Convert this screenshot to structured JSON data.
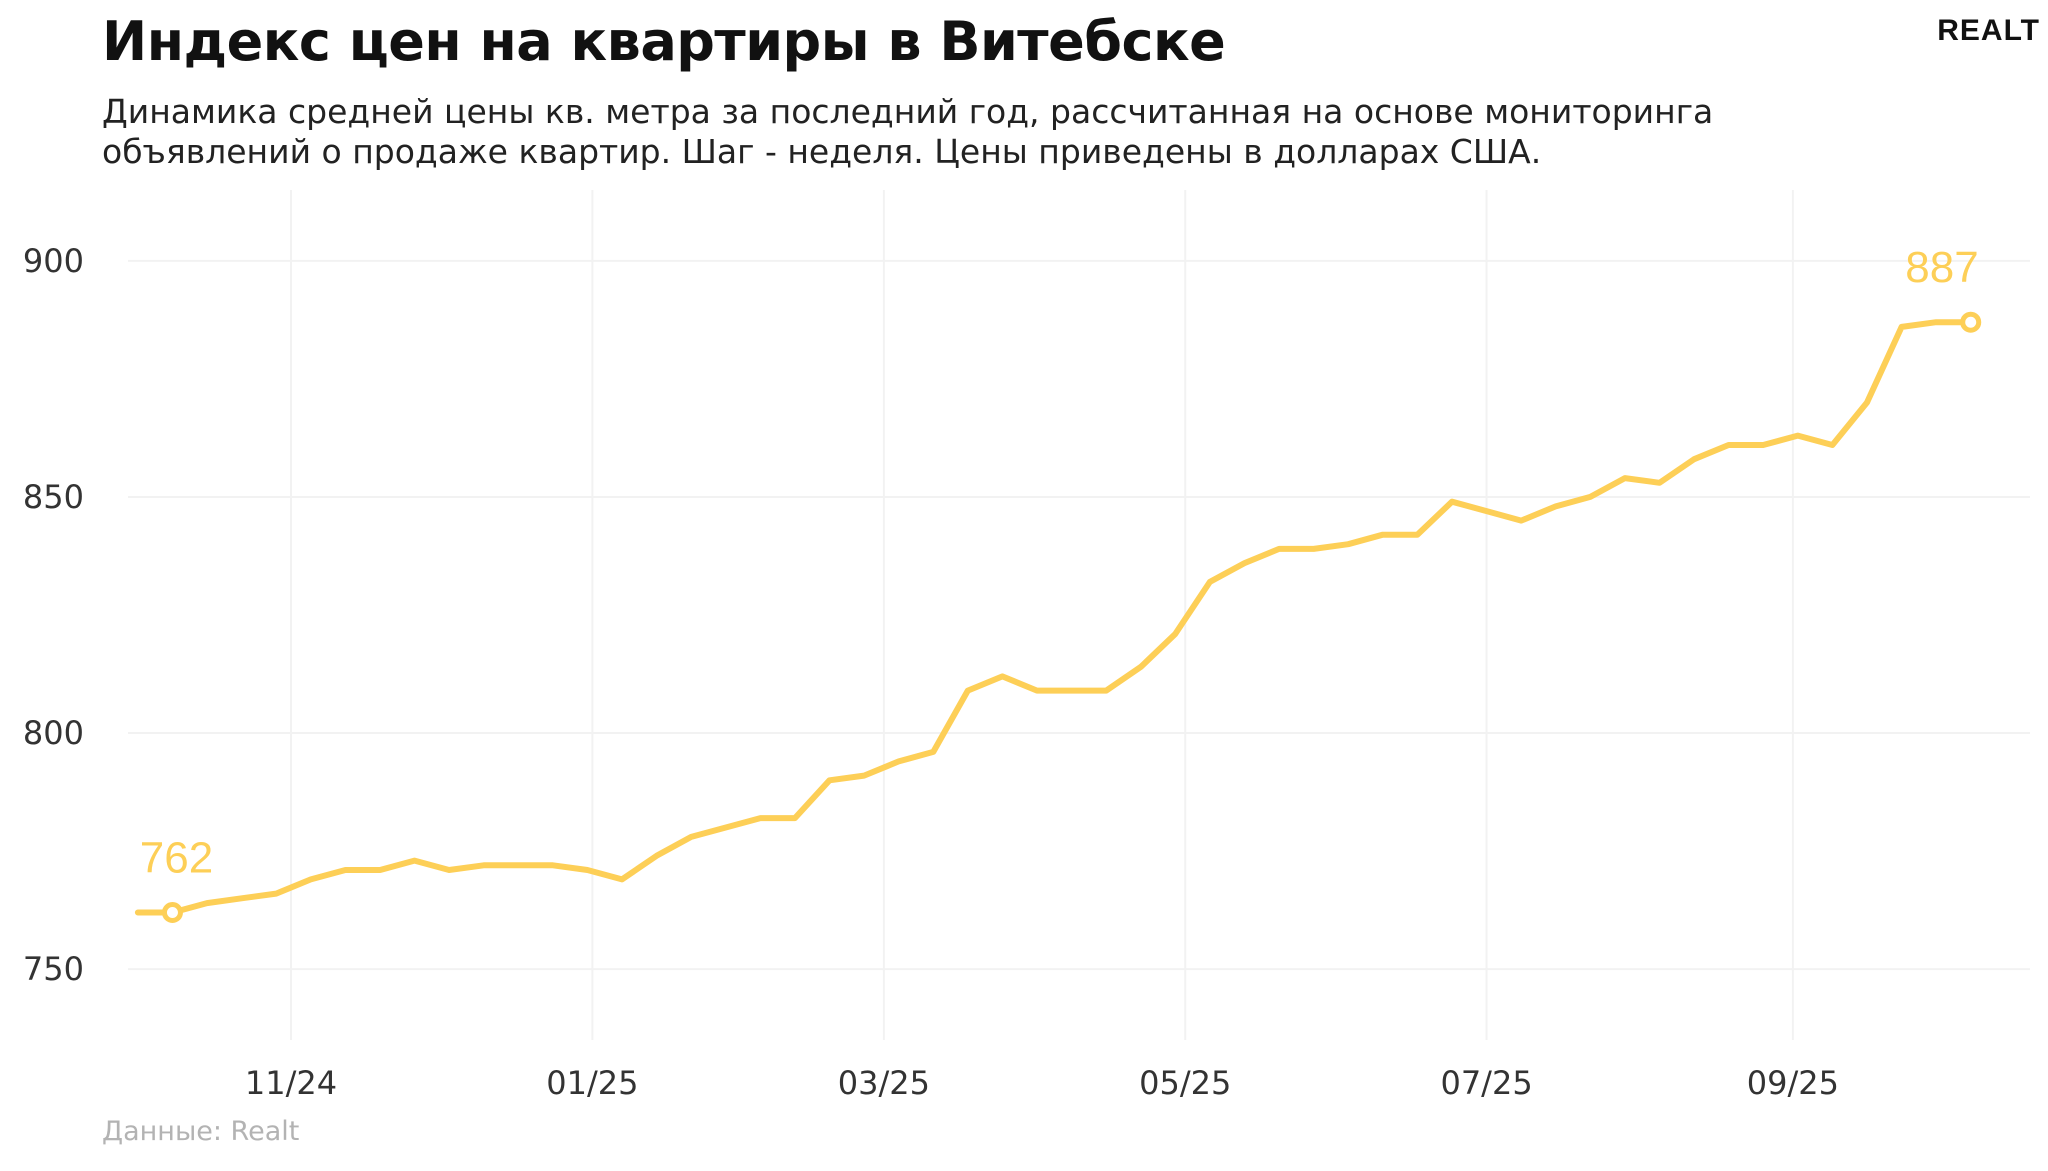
{
  "header": {
    "title": "Индекс цен на квартиры в Витебске",
    "subtitle": "Динамика средней цены кв. метра за последний год, рассчитанная на основе мониторинга объявлений о продаже квартир. Шаг - неделя. Цены приведены в долларах США.",
    "logo": "REALT"
  },
  "footer": {
    "source": "Данные: Realt"
  },
  "colors": {
    "line": "#FDCF57",
    "grid": "#f2f2f2"
  },
  "chart_data": {
    "type": "line",
    "title": "Индекс цен на квартиры в Витебске",
    "xlabel": "",
    "ylabel": "",
    "ylim": [
      735,
      915
    ],
    "yticks": [
      750,
      800,
      850,
      900
    ],
    "xticks": [
      "2024-11-01",
      "2025-01-01",
      "2025-03-01",
      "2025-05-01",
      "2025-07-01",
      "2025-09-01"
    ],
    "xtick_labels": [
      "11/24",
      "01/25",
      "03/25",
      "05/25",
      "07/25",
      "09/25"
    ],
    "xlim": [
      "2024-09-29",
      "2025-10-19"
    ],
    "grid": true,
    "series": [
      {
        "x": [
          "2024-10-01",
          "2024-10-08",
          "2024-10-15",
          "2024-10-22",
          "2024-10-29",
          "2024-11-05",
          "2024-11-12",
          "2024-11-19",
          "2024-11-26",
          "2024-12-03",
          "2024-12-10",
          "2024-12-17",
          "2024-12-24",
          "2024-12-31",
          "2025-01-07",
          "2025-01-14",
          "2025-01-21",
          "2025-01-28",
          "2025-02-04",
          "2025-02-11",
          "2025-02-18",
          "2025-02-25",
          "2025-03-04",
          "2025-03-11",
          "2025-03-18",
          "2025-03-25",
          "2025-04-01",
          "2025-04-08",
          "2025-04-15",
          "2025-04-22",
          "2025-04-29",
          "2025-05-06",
          "2025-05-13",
          "2025-05-20",
          "2025-05-27",
          "2025-06-03",
          "2025-06-10",
          "2025-06-17",
          "2025-06-24",
          "2025-07-01",
          "2025-07-08",
          "2025-07-15",
          "2025-07-22",
          "2025-07-29",
          "2025-08-05",
          "2025-08-12",
          "2025-08-19",
          "2025-08-26",
          "2025-09-02",
          "2025-09-09",
          "2025-09-16",
          "2025-09-23",
          "2025-09-30",
          "2025-10-07"
        ],
        "values": [
          762,
          762,
          764,
          765,
          766,
          769,
          771,
          771,
          773,
          771,
          772,
          772,
          772,
          771,
          769,
          774,
          778,
          780,
          782,
          782,
          790,
          791,
          794,
          796,
          809,
          812,
          809,
          809,
          809,
          814,
          821,
          832,
          836,
          839,
          839,
          840,
          842,
          842,
          849,
          847,
          845,
          848,
          850,
          854,
          853,
          858,
          861,
          861,
          863,
          861,
          870,
          886,
          887,
          887
        ]
      }
    ],
    "annotations": [
      {
        "label": "762",
        "x": "2024-10-08",
        "y": 762
      },
      {
        "label": "887",
        "x": "2025-10-07",
        "y": 887
      }
    ]
  }
}
